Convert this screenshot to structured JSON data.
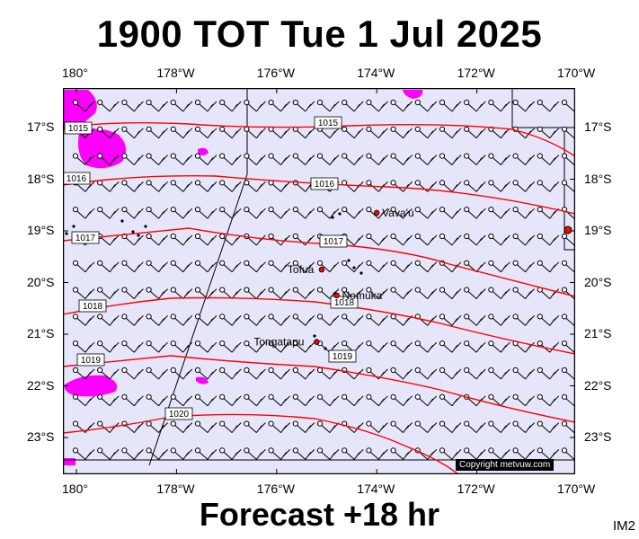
{
  "header": {
    "title": "1900 TOT Tue 1 Jul 2025"
  },
  "footer": {
    "forecast": "Forecast +18 hr",
    "image_id": "IM2",
    "copyright": "Copyright metvuw.com"
  },
  "colors": {
    "background": "#e6e6fa",
    "isobar": "#ff0000",
    "rain": "#ff00ff",
    "land": "#000000"
  },
  "axes": {
    "lon_labels": [
      "180°",
      "178°W",
      "176°W",
      "174°W",
      "172°W",
      "170°W"
    ],
    "lat_labels": [
      "17°S",
      "18°S",
      "19°S",
      "20°S",
      "21°S",
      "22°S",
      "23°S"
    ]
  },
  "places": [
    {
      "name": "Vava'u",
      "lon": -174.0,
      "lat": -18.65
    },
    {
      "name": "Tofua",
      "lon": -175.1,
      "lat": -19.75
    },
    {
      "name": "Nomuka",
      "lon": -174.8,
      "lat": -20.25
    },
    {
      "name": "Tongatapu",
      "lon": -175.2,
      "lat": -21.15
    }
  ],
  "isobars": [
    {
      "label": "1015",
      "lat_level": -17.1
    },
    {
      "label": "1016",
      "lat_level": -18.05
    },
    {
      "label": "1017",
      "lat_level": -19.15
    },
    {
      "label": "1018",
      "lat_level": -20.4
    },
    {
      "label": "1019",
      "lat_level": -21.5
    },
    {
      "label": "1020",
      "lat_level": -22.6
    }
  ],
  "isobar_labels_shown": [
    "1015",
    "1015",
    "1016",
    "1016",
    "1017",
    "1017",
    "1018",
    "1018",
    "1019",
    "1019",
    "1020"
  ]
}
